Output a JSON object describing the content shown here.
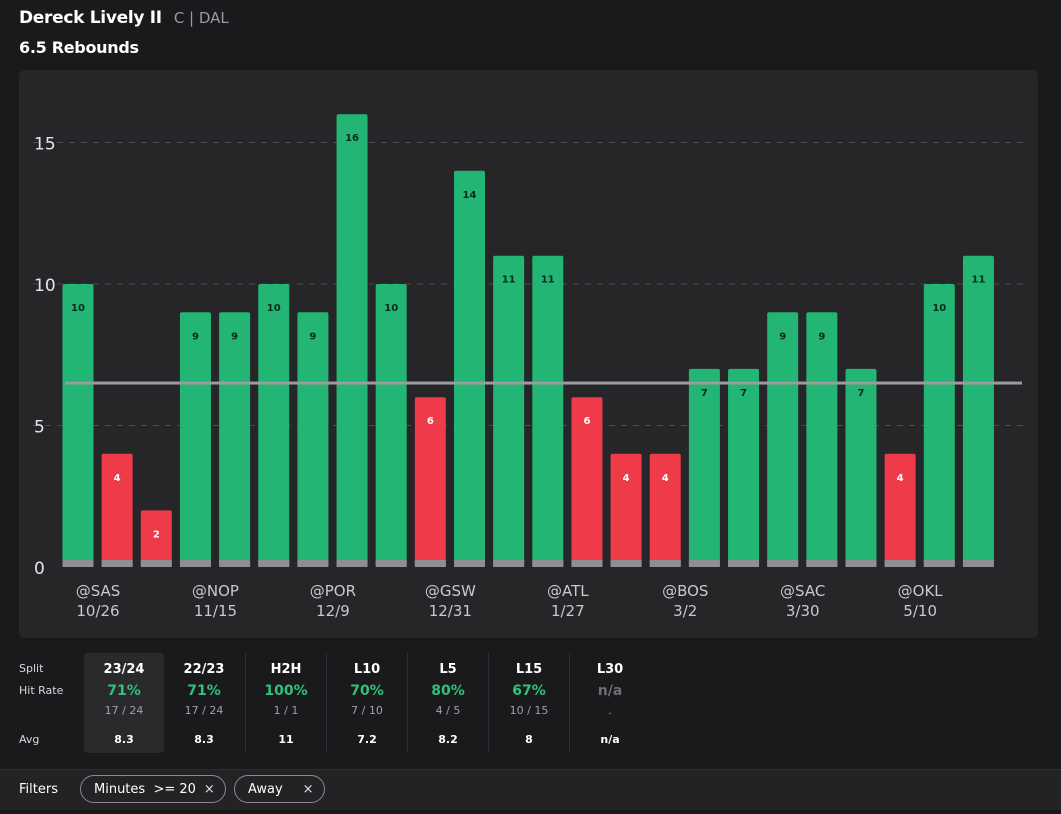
{
  "header": {
    "player_name": "Dereck Lively II",
    "player_meta": "C | DAL",
    "prop_line": "6.5 Rebounds"
  },
  "colors": {
    "over": "#22b573",
    "under": "#ef3a4a",
    "line": "#9b9ba0",
    "background": "#1a1a1c",
    "card": "#262629"
  },
  "chart_data": {
    "type": "bar",
    "title": "",
    "ylim": [
      0,
      16.5
    ],
    "yticks": [
      0,
      5,
      10,
      15
    ],
    "threshold": 6.5,
    "grid": true,
    "values": [
      10,
      4,
      2,
      9,
      9,
      10,
      9,
      16,
      10,
      6,
      14,
      11,
      11,
      6,
      4,
      4,
      7,
      7,
      9,
      9,
      7,
      4,
      10,
      11
    ],
    "value_labels": [
      "10",
      "4",
      "2",
      "9",
      "9",
      "10",
      "9",
      "16",
      "10",
      "6",
      "14",
      "11",
      "11",
      "6",
      "4",
      "4",
      "7",
      "7",
      "9",
      "9",
      "7",
      "4",
      "10",
      "11"
    ],
    "x_labels": [
      {
        "index": 0,
        "opponent": "@SAS",
        "date": "10/26"
      },
      {
        "index": 3,
        "opponent": "@NOP",
        "date": "11/15"
      },
      {
        "index": 6,
        "opponent": "@POR",
        "date": "12/9"
      },
      {
        "index": 9,
        "opponent": "@GSW",
        "date": "12/31"
      },
      {
        "index": 12,
        "opponent": "@ATL",
        "date": "1/27"
      },
      {
        "index": 15,
        "opponent": "@BOS",
        "date": "3/2"
      },
      {
        "index": 18,
        "opponent": "@SAC",
        "date": "3/30"
      },
      {
        "index": 21,
        "opponent": "@OKL",
        "date": "5/10"
      }
    ]
  },
  "splits": {
    "row_labels": {
      "split": "Split",
      "hit_rate": "Hit Rate",
      "avg": "Avg"
    },
    "columns": [
      {
        "label": "23/24",
        "rate": "71%",
        "fraction": "17 / 24",
        "avg": "8.3",
        "active": true
      },
      {
        "label": "22/23",
        "rate": "71%",
        "fraction": "17 / 24",
        "avg": "8.3",
        "active": false
      },
      {
        "label": "H2H",
        "rate": "100%",
        "fraction": "1 / 1",
        "avg": "11",
        "active": false
      },
      {
        "label": "L10",
        "rate": "70%",
        "fraction": "7 / 10",
        "avg": "7.2",
        "active": false
      },
      {
        "label": "L5",
        "rate": "80%",
        "fraction": "4 / 5",
        "avg": "8.2",
        "active": false
      },
      {
        "label": "L15",
        "rate": "67%",
        "fraction": "10 / 15",
        "avg": "8",
        "active": false
      },
      {
        "label": "L30",
        "rate": "n/a",
        "fraction": ".",
        "avg": "n/a",
        "active": false
      }
    ]
  },
  "filters": {
    "label": "Filters",
    "chips": [
      {
        "label": "Minutes  >= 20",
        "close": "×"
      },
      {
        "label": "Away",
        "close": "×"
      }
    ]
  }
}
